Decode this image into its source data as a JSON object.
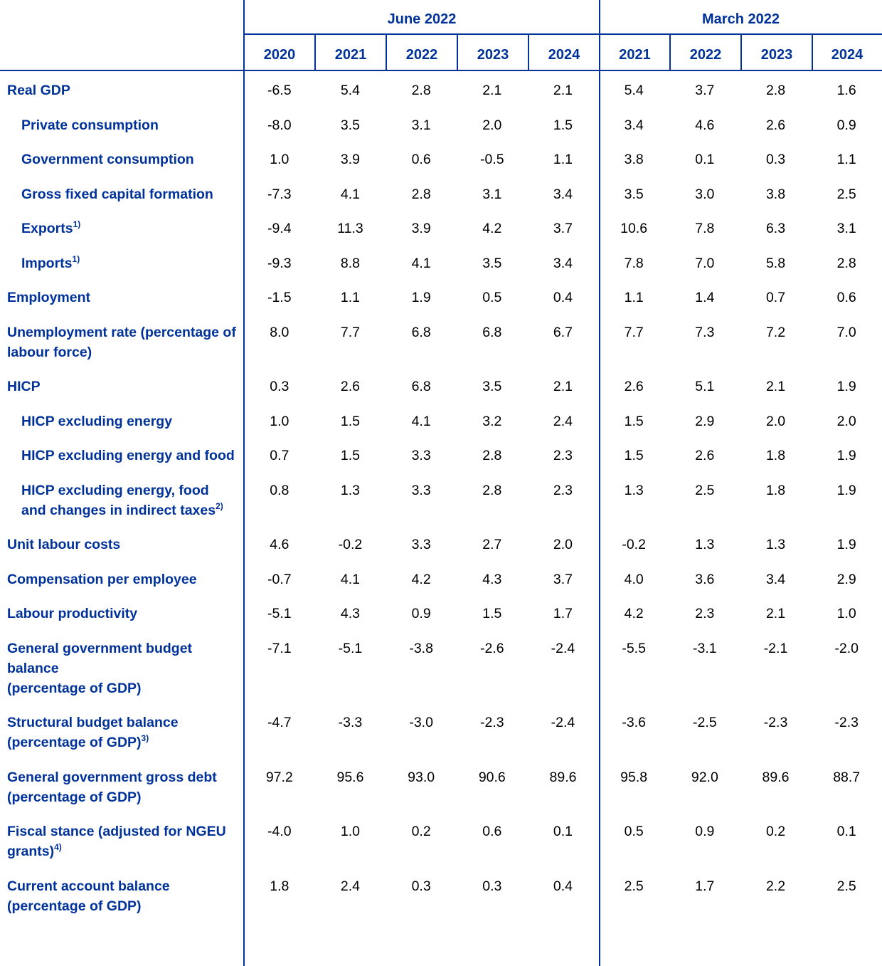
{
  "colors": {
    "accent": "#003299",
    "text": "#000000"
  },
  "groups": [
    {
      "label": "June 2022",
      "years": [
        "2020",
        "2021",
        "2022",
        "2023",
        "2024"
      ]
    },
    {
      "label": "March 2022",
      "years": [
        "2021",
        "2022",
        "2023",
        "2024"
      ]
    }
  ],
  "rows": [
    {
      "label": "Real GDP",
      "sup": "",
      "level": 0,
      "values": [
        "-6.5",
        "5.4",
        "2.8",
        "2.1",
        "2.1",
        "5.4",
        "3.7",
        "2.8",
        "1.6"
      ]
    },
    {
      "label": "Private consumption",
      "sup": "",
      "level": 1,
      "values": [
        "-8.0",
        "3.5",
        "3.1",
        "2.0",
        "1.5",
        "3.4",
        "4.6",
        "2.6",
        "0.9"
      ]
    },
    {
      "label": "Government consumption",
      "sup": "",
      "level": 1,
      "values": [
        "1.0",
        "3.9",
        "0.6",
        "-0.5",
        "1.1",
        "3.8",
        "0.1",
        "0.3",
        "1.1"
      ]
    },
    {
      "label": "Gross fixed capital formation",
      "sup": "",
      "level": 1,
      "values": [
        "-7.3",
        "4.1",
        "2.8",
        "3.1",
        "3.4",
        "3.5",
        "3.0",
        "3.8",
        "2.5"
      ]
    },
    {
      "label": "Exports",
      "sup": "1)",
      "level": 1,
      "values": [
        "-9.4",
        "11.3",
        "3.9",
        "4.2",
        "3.7",
        "10.6",
        "7.8",
        "6.3",
        "3.1"
      ]
    },
    {
      "label": "Imports",
      "sup": "1)",
      "level": 1,
      "values": [
        "-9.3",
        "8.8",
        "4.1",
        "3.5",
        "3.4",
        "7.8",
        "7.0",
        "5.8",
        "2.8"
      ]
    },
    {
      "label": "Employment",
      "sup": "",
      "level": 0,
      "values": [
        "-1.5",
        "1.1",
        "1.9",
        "0.5",
        "0.4",
        "1.1",
        "1.4",
        "0.7",
        "0.6"
      ]
    },
    {
      "label": "Unemployment rate (percentage of labour force)",
      "sup": "",
      "level": 0,
      "values": [
        "8.0",
        "7.7",
        "6.8",
        "6.8",
        "6.7",
        "7.7",
        "7.3",
        "7.2",
        "7.0"
      ]
    },
    {
      "label": "HICP",
      "sup": "",
      "level": 0,
      "values": [
        "0.3",
        "2.6",
        "6.8",
        "3.5",
        "2.1",
        "2.6",
        "5.1",
        "2.1",
        "1.9"
      ]
    },
    {
      "label": "HICP excluding energy",
      "sup": "",
      "level": 1,
      "values": [
        "1.0",
        "1.5",
        "4.1",
        "3.2",
        "2.4",
        "1.5",
        "2.9",
        "2.0",
        "2.0"
      ]
    },
    {
      "label": "HICP excluding energy and food",
      "sup": "",
      "level": 1,
      "values": [
        "0.7",
        "1.5",
        "3.3",
        "2.8",
        "2.3",
        "1.5",
        "2.6",
        "1.8",
        "1.9"
      ]
    },
    {
      "label": "HICP excluding energy, food and changes in indirect taxes",
      "sup": "2)",
      "level": 1,
      "values": [
        "0.8",
        "1.3",
        "3.3",
        "2.8",
        "2.3",
        "1.3",
        "2.5",
        "1.8",
        "1.9"
      ]
    },
    {
      "label": "Unit labour costs",
      "sup": "",
      "level": 0,
      "values": [
        "4.6",
        "-0.2",
        "3.3",
        "2.7",
        "2.0",
        "-0.2",
        "1.3",
        "1.3",
        "1.9"
      ]
    },
    {
      "label": "Compensation per employee",
      "sup": "",
      "level": 0,
      "values": [
        "-0.7",
        "4.1",
        "4.2",
        "4.3",
        "3.7",
        "4.0",
        "3.6",
        "3.4",
        "2.9"
      ]
    },
    {
      "label": "Labour productivity",
      "sup": "",
      "level": 0,
      "values": [
        "-5.1",
        "4.3",
        "0.9",
        "1.5",
        "1.7",
        "4.2",
        "2.3",
        "2.1",
        "1.0"
      ]
    },
    {
      "label": "General government budget balance\n(percentage of GDP)",
      "sup": "",
      "level": 0,
      "values": [
        "-7.1",
        "-5.1",
        "-3.8",
        "-2.6",
        "-2.4",
        "-5.5",
        "-3.1",
        "-2.1",
        "-2.0"
      ]
    },
    {
      "label": "Structural budget balance\n(percentage of GDP)",
      "sup": "3)",
      "level": 0,
      "values": [
        "-4.7",
        "-3.3",
        "-3.0",
        "-2.3",
        "-2.4",
        "-3.6",
        "-2.5",
        "-2.3",
        "-2.3"
      ]
    },
    {
      "label": "General government gross debt\n(percentage of GDP)",
      "sup": "",
      "level": 0,
      "values": [
        "97.2",
        "95.6",
        "93.0",
        "90.6",
        "89.6",
        "95.8",
        "92.0",
        "89.6",
        "88.7"
      ]
    },
    {
      "label": "Fiscal stance (adjusted for NGEU grants)",
      "sup": "4)",
      "level": 0,
      "values": [
        "-4.0",
        "1.0",
        "0.2",
        "0.6",
        "0.1",
        "0.5",
        "0.9",
        "0.2",
        "0.1"
      ]
    },
    {
      "label": "Current account balance\n(percentage of GDP)",
      "sup": "",
      "level": 0,
      "values": [
        "1.8",
        "2.4",
        "0.3",
        "0.3",
        "0.4",
        "2.5",
        "1.7",
        "2.2",
        "2.5"
      ]
    }
  ]
}
